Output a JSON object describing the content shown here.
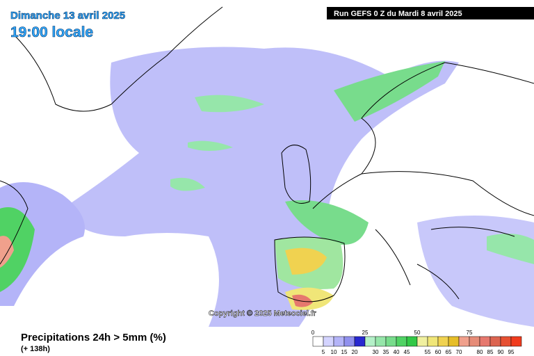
{
  "header": {
    "date": "Dimanche 13 avril 2025",
    "time": "19:00 locale",
    "run": "Run GEFS 0 Z du Mardi 8 avril 2025"
  },
  "copyright": "Copyright © 2025 Meteociel.fr",
  "footer": {
    "title": "Precipitations 24h > 5mm (%)",
    "lead": "(+ 138h)"
  },
  "legend": {
    "major_labels": [
      0,
      25,
      50,
      75
    ],
    "minor_labels": [
      5,
      10,
      15,
      20,
      30,
      35,
      40,
      45,
      55,
      60,
      65,
      70,
      80,
      85,
      90,
      95
    ],
    "colors": [
      "#ffffff",
      "#d4d4ff",
      "#b4b4f8",
      "#9090ee",
      "#2828d0",
      "#b4f0c8",
      "#96e6aa",
      "#78dc8c",
      "#50d264",
      "#32c846",
      "#f0f0a0",
      "#f0e678",
      "#f0d250",
      "#e6be28",
      "#f0a08c",
      "#e68c78",
      "#e6786e",
      "#dc6450",
      "#e65032",
      "#f03c1e"
    ]
  }
}
